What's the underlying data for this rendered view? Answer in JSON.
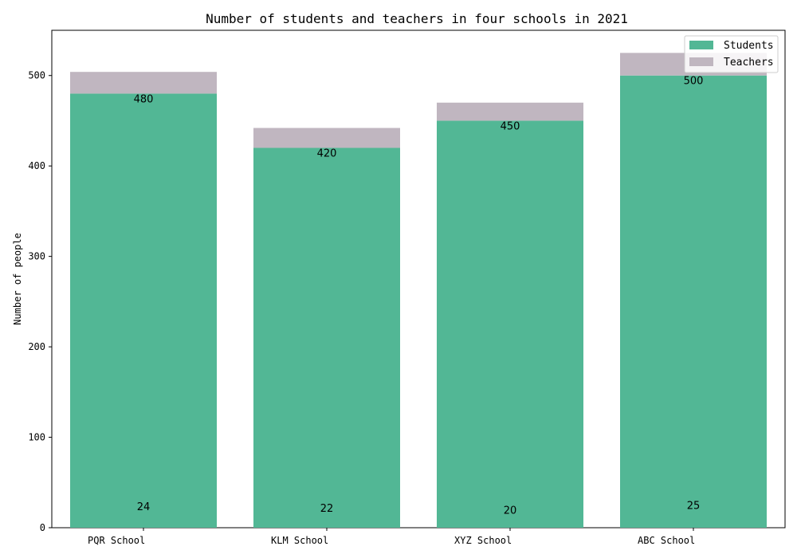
{
  "chart_data": {
    "type": "bar",
    "stacked": true,
    "title": "Number of students and teachers in four schools in 2021",
    "xlabel": "",
    "ylabel": "Number of people",
    "categories": [
      "PQR School",
      "KLM School",
      "XYZ School",
      "ABC School"
    ],
    "series": [
      {
        "name": "Students",
        "values": [
          480,
          420,
          450,
          500
        ],
        "color": "#52b795"
      },
      {
        "name": "Teachers",
        "values": [
          24,
          22,
          20,
          25
        ],
        "color": "#c0b6c0"
      }
    ],
    "ylim": [
      0,
      550
    ],
    "yticks": [
      0,
      100,
      200,
      300,
      400,
      500
    ],
    "grid": false,
    "legend_position": "top-right"
  }
}
